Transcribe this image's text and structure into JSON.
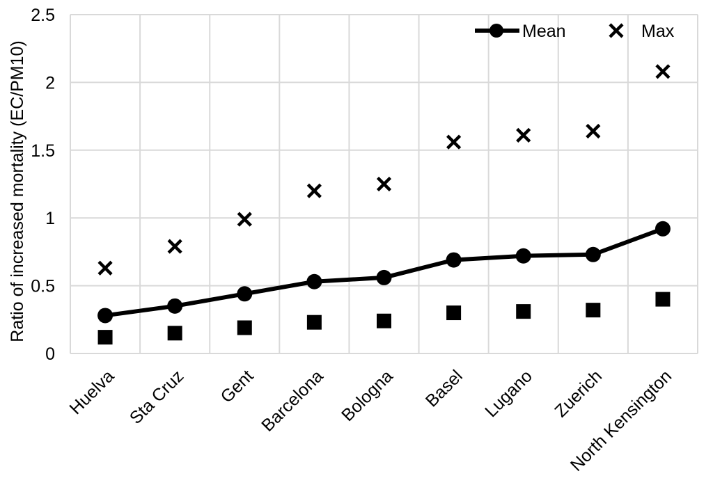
{
  "chart_data": {
    "type": "line",
    "title": "",
    "xlabel": "",
    "ylabel": "Ratio of increased mortality (EC/PM10)",
    "ylim": [
      0,
      2.5
    ],
    "yticks": [
      "0",
      "0.5",
      "1",
      "1.5",
      "2",
      "2.5"
    ],
    "grid": true,
    "legend_position": "top-right",
    "categories": [
      "Huelva",
      "Sta Cruz",
      "Gent",
      "Barcelona",
      "Bologna",
      "Basel",
      "Lugano",
      "Zuerich",
      "North Kensington"
    ],
    "series": [
      {
        "name": "Mean",
        "style": "line-circle",
        "color": "#000000",
        "values": [
          0.28,
          0.35,
          0.44,
          0.53,
          0.56,
          0.69,
          0.72,
          0.73,
          0.92
        ]
      },
      {
        "name": "Max",
        "style": "x-marker",
        "color": "#000000",
        "values": [
          0.63,
          0.79,
          0.99,
          1.2,
          1.25,
          1.56,
          1.61,
          1.64,
          2.08
        ]
      },
      {
        "name": "",
        "style": "square-marker",
        "color": "#000000",
        "values": [
          0.12,
          0.15,
          0.19,
          0.23,
          0.24,
          0.3,
          0.31,
          0.32,
          0.4
        ]
      }
    ]
  }
}
